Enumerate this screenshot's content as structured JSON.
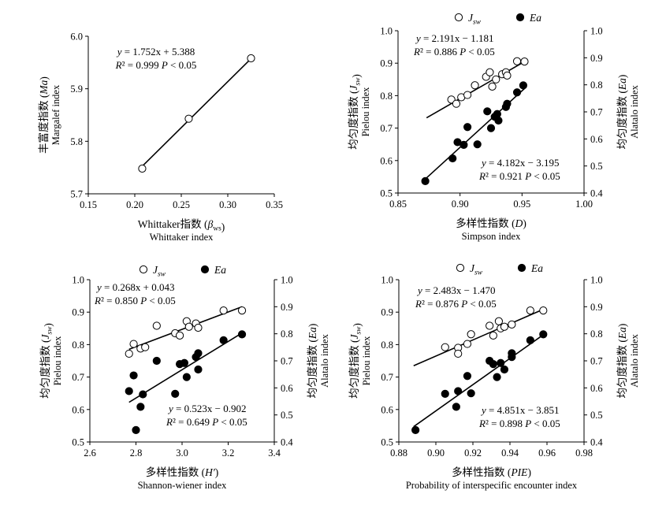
{
  "figure": {
    "background": "#ffffff",
    "ink": "#000000"
  },
  "chart_data": [
    {
      "id": "a",
      "type": "scatter",
      "xlabel": "Whittaker指数 (β_ws)",
      "xlabel_sub": "Whittaker index",
      "ylabel": "丰富度指数 (Ma)",
      "ylabel_sub": "Margalef  index",
      "xlim": [
        0.15,
        0.35
      ],
      "ylim": [
        5.7,
        6.0
      ],
      "xticks": [
        "0.15",
        "0.20",
        "0.25",
        "0.30",
        "0.35"
      ],
      "yticks": [
        "5.7",
        "5.8",
        "5.9",
        "6.0"
      ],
      "grid": false,
      "series": [
        {
          "marker": "open-circle",
          "points": [
            [
              0.208,
              5.748
            ],
            [
              0.258,
              5.843
            ],
            [
              0.325,
              5.958
            ]
          ],
          "fit": {
            "slope": 1.752,
            "intercept": 5.388,
            "xrange": [
              0.208,
              0.325
            ]
          }
        }
      ],
      "annotations": [
        {
          "text": "y = 1.752x + 5.388",
          "position": "top-center"
        },
        {
          "text": "R² = 0.999    P < 0.05",
          "position": "top-center"
        }
      ]
    },
    {
      "id": "b",
      "type": "scatter",
      "xlabel": "多样性指数 (D)",
      "xlabel_sub": "Simpson index",
      "ylabel": "均匀度指数 (J_sw)",
      "ylabel_sub": "Pielou index",
      "y2label": "均匀度指数 (Ea)",
      "y2label_sub": "Alatalo index",
      "xlim": [
        0.85,
        1.0
      ],
      "ylim": [
        0.5,
        1.0
      ],
      "y2lim": [
        0.4,
        1.0
      ],
      "xticks": [
        "0.85",
        "0.90",
        "0.95",
        "1.00"
      ],
      "yticks": [
        "0.5",
        "0.6",
        "0.7",
        "0.8",
        "0.9",
        "1.0"
      ],
      "y2ticks": [
        "0.4",
        "0.5",
        "0.6",
        "0.7",
        "0.8",
        "0.9",
        "1.0"
      ],
      "grid": false,
      "legend": {
        "position": "top-right",
        "entries": [
          "J_sw",
          "Ea"
        ]
      },
      "series": [
        {
          "name": "J_sw",
          "marker": "open-circle",
          "axis": "left",
          "points": [
            [
              0.893,
              0.788
            ],
            [
              0.897,
              0.775
            ],
            [
              0.901,
              0.795
            ],
            [
              0.906,
              0.802
            ],
            [
              0.912,
              0.832
            ],
            [
              0.921,
              0.858
            ],
            [
              0.924,
              0.872
            ],
            [
              0.926,
              0.828
            ],
            [
              0.929,
              0.85
            ],
            [
              0.934,
              0.866
            ],
            [
              0.937,
              0.872
            ],
            [
              0.938,
              0.862
            ],
            [
              0.946,
              0.906
            ],
            [
              0.952,
              0.905
            ]
          ],
          "fit": {
            "slope": 2.191,
            "intercept": -1.181,
            "xrange": [
              0.873,
              0.952
            ]
          }
        },
        {
          "name": "Ea",
          "marker": "filled-circle",
          "axis": "right",
          "points": [
            [
              0.872,
              0.444
            ],
            [
              0.894,
              0.528
            ],
            [
              0.898,
              0.588
            ],
            [
              0.903,
              0.578
            ],
            [
              0.906,
              0.644
            ],
            [
              0.914,
              0.58
            ],
            [
              0.922,
              0.702
            ],
            [
              0.925,
              0.64
            ],
            [
              0.928,
              0.682
            ],
            [
              0.93,
              0.692
            ],
            [
              0.931,
              0.668
            ],
            [
              0.937,
              0.718
            ],
            [
              0.938,
              0.73
            ],
            [
              0.946,
              0.772
            ],
            [
              0.951,
              0.798
            ]
          ],
          "fit": {
            "slope": 4.182,
            "intercept": -3.195,
            "xrange": [
              0.873,
              0.952
            ]
          }
        }
      ],
      "annotations": [
        {
          "text": "y = 2.191x − 1.181",
          "position": "top-left"
        },
        {
          "text": "R² = 0.886    P < 0.05",
          "position": "top-left"
        },
        {
          "text": "y = 4.182x − 3.195",
          "position": "bottom-right"
        },
        {
          "text": "R² = 0.921    P < 0.05",
          "position": "bottom-right"
        }
      ]
    },
    {
      "id": "c",
      "type": "scatter",
      "xlabel": "多样性指数 (H′)",
      "xlabel_sub": "Shannon-wiener index",
      "ylabel": "均匀度指数 (J_sw)",
      "ylabel_sub": "Pielou index",
      "y2label": "均匀度指数 (Ea)",
      "y2label_sub": "Alatalo index",
      "xlim": [
        2.6,
        3.4
      ],
      "ylim": [
        0.5,
        1.0
      ],
      "y2lim": [
        0.4,
        1.0
      ],
      "xticks": [
        "2.6",
        "2.8",
        "3.0",
        "3.2",
        "3.4"
      ],
      "yticks": [
        "0.5",
        "0.6",
        "0.7",
        "0.8",
        "0.9",
        "1.0"
      ],
      "y2ticks": [
        "0.4",
        "0.5",
        "0.6",
        "0.7",
        "0.8",
        "0.9",
        "1.0"
      ],
      "grid": false,
      "legend": {
        "position": "top-center",
        "entries": [
          "J_sw",
          "Ea"
        ]
      },
      "series": [
        {
          "name": "J_sw",
          "marker": "open-circle",
          "axis": "left",
          "points": [
            [
              2.77,
              0.772
            ],
            [
              2.79,
              0.802
            ],
            [
              2.82,
              0.788
            ],
            [
              2.84,
              0.792
            ],
            [
              2.89,
              0.858
            ],
            [
              2.97,
              0.835
            ],
            [
              2.99,
              0.828
            ],
            [
              3.02,
              0.872
            ],
            [
              3.03,
              0.855
            ],
            [
              3.06,
              0.865
            ],
            [
              3.07,
              0.852
            ],
            [
              3.18,
              0.905
            ],
            [
              3.26,
              0.905
            ]
          ],
          "fit": {
            "slope": 0.268,
            "intercept": 0.043,
            "xrange": [
              2.77,
              3.26
            ]
          }
        },
        {
          "name": "Ea",
          "marker": "filled-circle",
          "axis": "right",
          "points": [
            [
              2.77,
              0.588
            ],
            [
              2.79,
              0.646
            ],
            [
              2.8,
              0.444
            ],
            [
              2.82,
              0.53
            ],
            [
              2.83,
              0.576
            ],
            [
              2.89,
              0.7
            ],
            [
              2.97,
              0.578
            ],
            [
              2.99,
              0.688
            ],
            [
              3.01,
              0.692
            ],
            [
              3.02,
              0.64
            ],
            [
              3.06,
              0.714
            ],
            [
              3.07,
              0.728
            ],
            [
              3.07,
              0.668
            ],
            [
              3.18,
              0.776
            ],
            [
              3.26,
              0.798
            ]
          ],
          "fit": {
            "slope": 0.523,
            "intercept": -0.902,
            "xrange": [
              2.77,
              3.26
            ]
          }
        }
      ],
      "annotations": [
        {
          "text": "y = 0.268x + 0.043",
          "position": "top-left"
        },
        {
          "text": "R² = 0.850    P < 0.05",
          "position": "top-left"
        },
        {
          "text": "y = 0.523x − 0.902",
          "position": "bottom-right"
        },
        {
          "text": "R² = 0.649    P < 0.05",
          "position": "bottom-right"
        }
      ]
    },
    {
      "id": "d",
      "type": "scatter",
      "xlabel": "多样性指数 (PIE)",
      "xlabel_sub": "Probability of interspecific encounter index",
      "ylabel": "均匀度指数 (J_sw)",
      "ylabel_sub": "Pielou index",
      "y2label": "均匀度指数 (Ea)",
      "y2label_sub": "Alatalo index",
      "xlim": [
        0.88,
        0.98
      ],
      "ylim": [
        0.5,
        1.0
      ],
      "y2lim": [
        0.4,
        1.0
      ],
      "xticks": [
        "0.88",
        "0.90",
        "0.92",
        "0.94",
        "0.96",
        "0.98"
      ],
      "yticks": [
        "0.5",
        "0.6",
        "0.7",
        "0.8",
        "0.9",
        "1.0"
      ],
      "y2ticks": [
        "0.4",
        "0.5",
        "0.6",
        "0.7",
        "0.8",
        "0.9",
        "1.0"
      ],
      "grid": false,
      "legend": {
        "position": "top-center",
        "entries": [
          "J_sw",
          "Ea"
        ]
      },
      "series": [
        {
          "name": "J_sw",
          "marker": "open-circle",
          "axis": "left",
          "points": [
            [
              0.905,
              0.792
            ],
            [
              0.912,
              0.79
            ],
            [
              0.912,
              0.772
            ],
            [
              0.917,
              0.802
            ],
            [
              0.919,
              0.832
            ],
            [
              0.929,
              0.858
            ],
            [
              0.931,
              0.828
            ],
            [
              0.934,
              0.872
            ],
            [
              0.935,
              0.85
            ],
            [
              0.937,
              0.855
            ],
            [
              0.941,
              0.862
            ],
            [
              0.951,
              0.905
            ],
            [
              0.958,
              0.905
            ]
          ],
          "fit": {
            "slope": 2.483,
            "intercept": -1.47,
            "xrange": [
              0.888,
              0.958
            ]
          }
        },
        {
          "name": "Ea",
          "marker": "filled-circle",
          "axis": "right",
          "points": [
            [
              0.889,
              0.444
            ],
            [
              0.905,
              0.578
            ],
            [
              0.911,
              0.53
            ],
            [
              0.912,
              0.588
            ],
            [
              0.917,
              0.644
            ],
            [
              0.919,
              0.58
            ],
            [
              0.929,
              0.7
            ],
            [
              0.931,
              0.688
            ],
            [
              0.933,
              0.64
            ],
            [
              0.935,
              0.692
            ],
            [
              0.937,
              0.668
            ],
            [
              0.941,
              0.714
            ],
            [
              0.941,
              0.728
            ],
            [
              0.951,
              0.776
            ],
            [
              0.958,
              0.798
            ]
          ],
          "fit": {
            "slope": 4.851,
            "intercept": -3.851,
            "xrange": [
              0.888,
              0.958
            ]
          }
        }
      ],
      "annotations": [
        {
          "text": "y = 2.483x − 1.470",
          "position": "top-left"
        },
        {
          "text": "R² = 0.876    P < 0.05",
          "position": "top-left"
        },
        {
          "text": "y = 4.851x − 3.851",
          "position": "bottom-right"
        },
        {
          "text": "R² = 0.898    P < 0.05",
          "position": "bottom-right"
        }
      ]
    }
  ]
}
